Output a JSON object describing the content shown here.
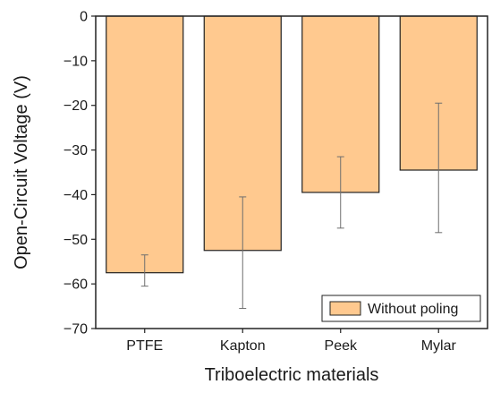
{
  "chart_data": {
    "type": "bar",
    "title": "",
    "xlabel": "Triboelectric materials",
    "ylabel": "Open-Circuit Voltage (V)",
    "categories": [
      "PTFE",
      "Kapton",
      "Peek",
      "Mylar"
    ],
    "series": [
      {
        "name": "Without poling",
        "values": [
          -57.5,
          -52.5,
          -39.5,
          -34.5
        ],
        "error_low": [
          -60.5,
          -65.5,
          -47.5,
          -48.5
        ],
        "error_high": [
          -53.5,
          -40.5,
          -31.5,
          -19.5
        ]
      }
    ],
    "ylim": [
      -70,
      0
    ],
    "yticks": [
      "0",
      "−10",
      "−20",
      "−30",
      "−40",
      "−50",
      "−60",
      "−70"
    ],
    "legend_position": "bottom-right",
    "grid": false,
    "colors": {
      "bar_fill": "#ffc98f",
      "bar_stroke": "#222222",
      "error_bar": "#6e6e6e",
      "axis": "#222222"
    }
  }
}
